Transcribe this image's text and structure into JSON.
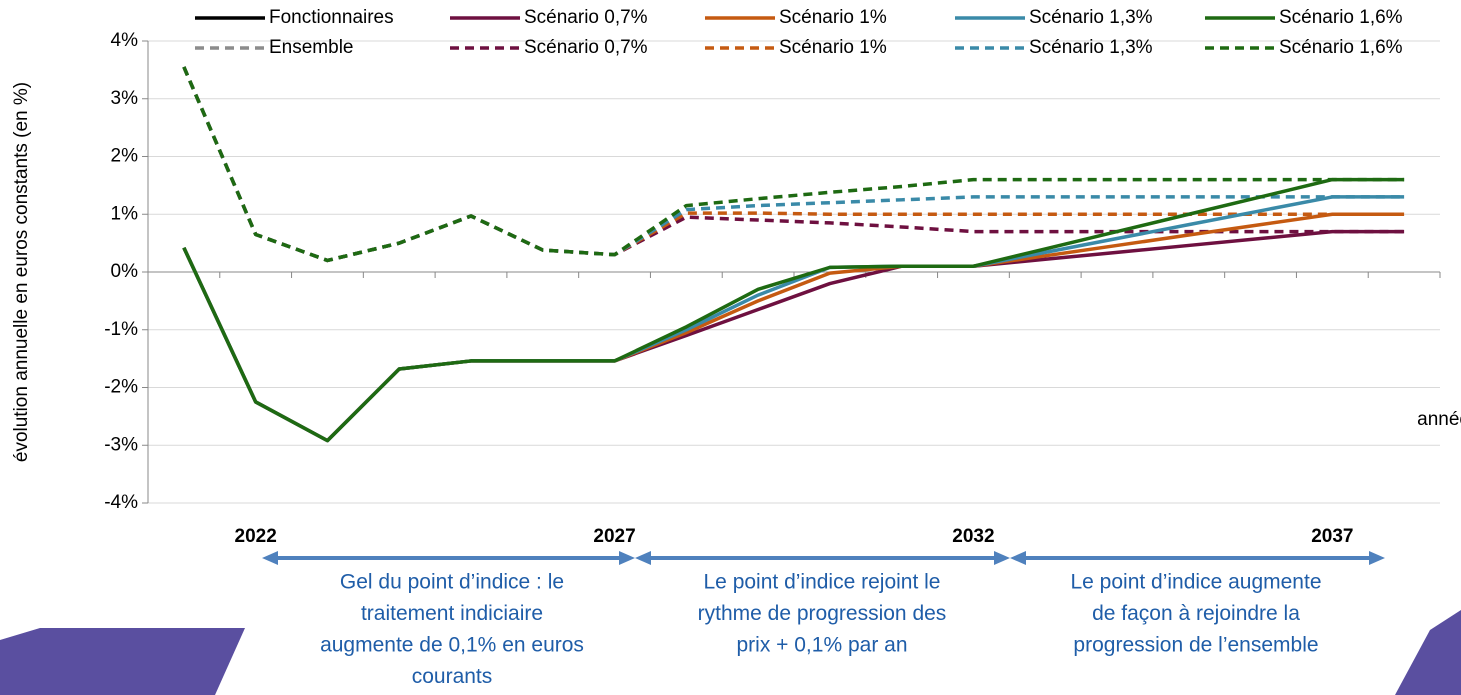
{
  "chart_data": {
    "type": "line",
    "y_label": "évolution annuelle en euros constants (en %)",
    "x_label": "année",
    "categories": [
      null,
      "2022",
      null,
      null,
      null,
      null,
      "2027",
      null,
      null,
      null,
      null,
      "2032",
      null,
      null,
      null,
      null,
      "2037",
      null
    ],
    "ylim": [
      -4,
      4
    ],
    "yticks": [
      {
        "value": -4,
        "label": "-4%"
      },
      {
        "value": -3,
        "label": "-3%"
      },
      {
        "value": -2,
        "label": "-2%"
      },
      {
        "value": -1,
        "label": "-1%"
      },
      {
        "value": 0,
        "label": "0%"
      },
      {
        "value": 1,
        "label": "1%"
      },
      {
        "value": 2,
        "label": "2%"
      },
      {
        "value": 3,
        "label": "3%"
      },
      {
        "value": 4,
        "label": "4%"
      }
    ],
    "grid": true,
    "series": [
      {
        "name": "Fonctionnaires",
        "color": "#000000",
        "dashed": false,
        "values": [
          null,
          null,
          null,
          null,
          null,
          null,
          null,
          null,
          null,
          null,
          null,
          null,
          null,
          null,
          null,
          null,
          null,
          null
        ]
      },
      {
        "name": "Scénario 0,7%",
        "color": "#6e1040",
        "dashed": false,
        "values": [
          0.42,
          -2.25,
          -2.92,
          -1.68,
          -1.54,
          -1.54,
          -1.54,
          -1.1,
          -0.65,
          -0.2,
          0.1,
          0.1,
          0.22,
          0.34,
          0.46,
          0.58,
          0.7,
          0.7
        ]
      },
      {
        "name": "Scénario 1%",
        "color": "#c55a11",
        "dashed": false,
        "values": [
          0.42,
          -2.25,
          -2.92,
          -1.68,
          -1.54,
          -1.54,
          -1.54,
          -1.05,
          -0.5,
          -0.02,
          0.1,
          0.1,
          0.28,
          0.46,
          0.64,
          0.82,
          1.0,
          1.0
        ]
      },
      {
        "name": "Scénario 1,3%",
        "color": "#3a8aa8",
        "dashed": false,
        "values": [
          0.42,
          -2.25,
          -2.92,
          -1.68,
          -1.54,
          -1.54,
          -1.54,
          -1.0,
          -0.4,
          0.08,
          0.1,
          0.1,
          0.34,
          0.58,
          0.82,
          1.06,
          1.3,
          1.3
        ]
      },
      {
        "name": "Scénario 1,6%",
        "color": "#1e6a12",
        "dashed": false,
        "values": [
          0.42,
          -2.25,
          -2.92,
          -1.68,
          -1.54,
          -1.54,
          -1.54,
          -0.95,
          -0.3,
          0.08,
          0.1,
          0.1,
          0.4,
          0.7,
          1.0,
          1.3,
          1.6,
          1.6
        ]
      },
      {
        "name": "Ensemble",
        "color": "#8c8c8c",
        "dashed": true,
        "values": [
          null,
          null,
          null,
          null,
          null,
          null,
          null,
          null,
          null,
          null,
          null,
          null,
          null,
          null,
          null,
          null,
          null,
          null
        ]
      },
      {
        "name": "Scénario 0,7%",
        "color": "#6e1040",
        "dashed": true,
        "values": [
          3.55,
          0.65,
          0.2,
          0.5,
          0.97,
          0.38,
          0.3,
          0.95,
          0.9,
          0.85,
          0.78,
          0.7,
          0.7,
          0.7,
          0.7,
          0.7,
          0.7,
          0.7
        ]
      },
      {
        "name": "Scénario 1%",
        "color": "#c55a11",
        "dashed": true,
        "values": [
          3.55,
          0.65,
          0.2,
          0.5,
          0.97,
          0.38,
          0.3,
          1.02,
          1.02,
          1.0,
          1.0,
          1.0,
          1.0,
          1.0,
          1.0,
          1.0,
          1.0,
          1.0
        ]
      },
      {
        "name": "Scénario 1,3%",
        "color": "#3a8aa8",
        "dashed": true,
        "values": [
          3.55,
          0.65,
          0.2,
          0.5,
          0.97,
          0.38,
          0.3,
          1.08,
          1.15,
          1.2,
          1.25,
          1.3,
          1.3,
          1.3,
          1.3,
          1.3,
          1.3,
          1.3
        ]
      },
      {
        "name": "Scénario 1,6%",
        "color": "#1e6a12",
        "dashed": true,
        "values": [
          3.55,
          0.65,
          0.2,
          0.5,
          0.97,
          0.38,
          0.3,
          1.15,
          1.27,
          1.38,
          1.48,
          1.6,
          1.6,
          1.6,
          1.6,
          1.6,
          1.6,
          1.6
        ]
      }
    ],
    "annotations": [
      [
        "Gel du point d’indice : le",
        "traitement indiciaire",
        "augmente de 0,1% en euros",
        "courants"
      ],
      [
        "Le point d’indice rejoint le",
        "rythme de progression des",
        "prix + 0,1% par an"
      ],
      [
        "Le point d’indice augmente",
        "de façon à rejoindre la",
        "progression de l’ensemble"
      ]
    ]
  }
}
